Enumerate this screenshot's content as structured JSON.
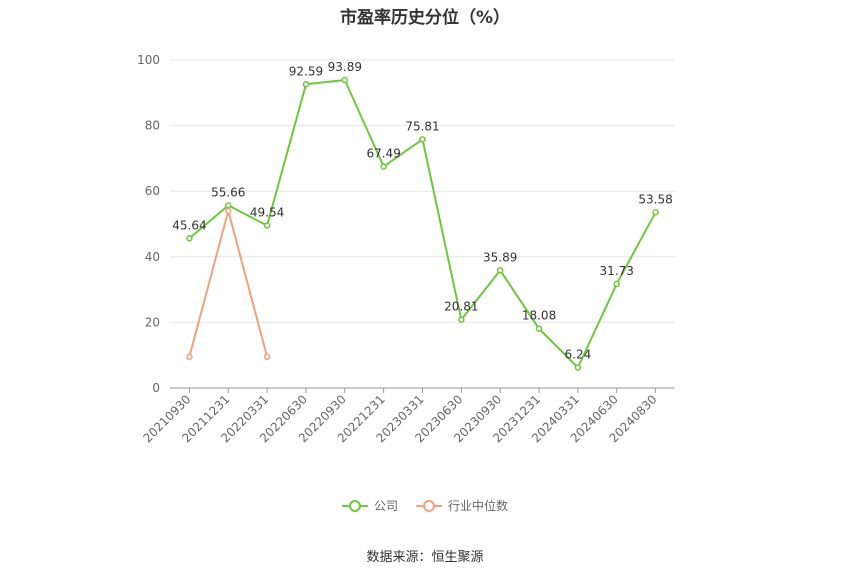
{
  "chart_data": {
    "type": "line",
    "title": "市盈率历史分位（%）",
    "categories": [
      "20210930",
      "20211231",
      "20220331",
      "20220630",
      "20220930",
      "20221231",
      "20230331",
      "20230630",
      "20230930",
      "20231231",
      "20240331",
      "20240630",
      "20240830"
    ],
    "series": [
      {
        "name": "公司",
        "color": "#6cc93a",
        "values": [
          45.64,
          55.66,
          49.54,
          92.59,
          93.89,
          67.49,
          75.81,
          20.81,
          35.89,
          18.08,
          6.24,
          31.73,
          53.58
        ]
      },
      {
        "name": "行业中位数",
        "color": "#f4a07c",
        "values": [
          9.5,
          54.0,
          9.5,
          null,
          null,
          null,
          null,
          null,
          null,
          null,
          null,
          null,
          null
        ]
      }
    ],
    "y_ticks": [
      "0",
      "20",
      "40",
      "60",
      "80",
      "100"
    ],
    "ylim": [
      0,
      100
    ],
    "grid": true,
    "legend_position": "bottom"
  },
  "footer": {
    "source": "数据来源：恒生聚源"
  }
}
